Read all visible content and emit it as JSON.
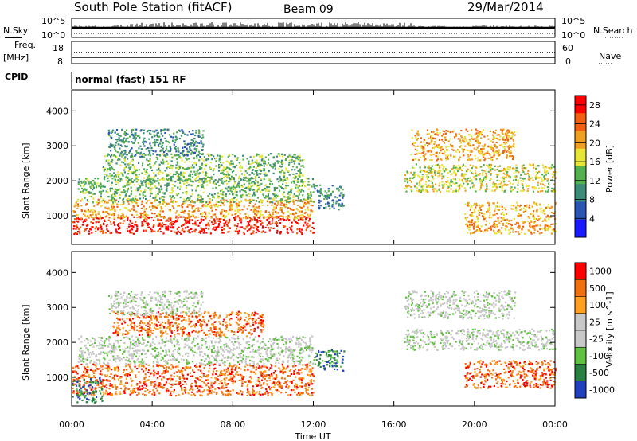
{
  "header": {
    "station": "South Pole Station (fitACF)",
    "beam": "Beam 09",
    "date": "29/Mar/2014"
  },
  "summary": {
    "nsky_label": "N.Sky",
    "nsearch_label": "N.Search",
    "nsky_ticks": [
      "10^5",
      "10^0"
    ],
    "nsearch_ticks": [
      "10^5",
      "10^0"
    ],
    "freq_label_line1": "Freq.",
    "freq_label_line2": "[MHz]",
    "freq_ticks": [
      "18",
      "8"
    ],
    "nave_label": "Nave",
    "nave_ticks": [
      "60",
      "0"
    ],
    "cpid_label": "CPID",
    "cpid_value": "normal (fast) 151 RF"
  },
  "chart_data": [
    {
      "type": "heatmap",
      "name": "power",
      "ylabel": "Slant Range [km]",
      "x_ticks": [
        "00:00",
        "04:00",
        "08:00",
        "12:00",
        "16:00",
        "20:00",
        "00:00"
      ],
      "x_range_hours": [
        0,
        24
      ],
      "y_ticks": [
        1000,
        2000,
        3000,
        4000
      ],
      "ylim": [
        180,
        4600
      ],
      "colorbar": {
        "label": "Power [dB]",
        "ticks": [
          4,
          8,
          12,
          16,
          20,
          24,
          28
        ],
        "range": [
          0,
          30
        ],
        "colors": [
          "#1a1aff",
          "#2a55b0",
          "#3c8c78",
          "#55b050",
          "#e6e639",
          "#f0a020",
          "#f06010",
          "#ff0000"
        ]
      },
      "regions": [
        {
          "t": [
            0.0,
            12.0
          ],
          "r": [
            500,
            1000
          ],
          "level": 7
        },
        {
          "t": [
            0.0,
            12.0
          ],
          "r": [
            950,
            1500
          ],
          "level": 5
        },
        {
          "t": [
            0.3,
            12.0
          ],
          "r": [
            1400,
            2100
          ],
          "level": 3
        },
        {
          "t": [
            1.5,
            11.5
          ],
          "r": [
            2000,
            2800
          ],
          "level": 3
        },
        {
          "t": [
            1.8,
            6.5
          ],
          "r": [
            2700,
            3500
          ],
          "level": 2
        },
        {
          "t": [
            12.0,
            13.5
          ],
          "r": [
            1200,
            1900
          ],
          "level": 2
        },
        {
          "t": [
            16.8,
            22.0
          ],
          "r": [
            2600,
            3500
          ],
          "level": 5
        },
        {
          "t": [
            16.5,
            24.0
          ],
          "r": [
            1700,
            2500
          ],
          "level": 4
        },
        {
          "t": [
            19.5,
            24.0
          ],
          "r": [
            500,
            1400
          ],
          "level": 5
        }
      ]
    },
    {
      "type": "heatmap",
      "name": "velocity",
      "ylabel": "Slant Range [km]",
      "xlabel": "Time UT",
      "x_ticks": [
        "00:00",
        "04:00",
        "08:00",
        "12:00",
        "16:00",
        "20:00",
        "00:00"
      ],
      "x_range_hours": [
        0,
        24
      ],
      "y_ticks": [
        1000,
        2000,
        3000,
        4000
      ],
      "ylim": [
        180,
        4600
      ],
      "colorbar": {
        "label": "Velocity [m s^-1]",
        "ticks": [
          1000,
          500,
          100,
          25,
          -25,
          -100,
          -500,
          -1000
        ],
        "colors": [
          "#2040c0",
          "#2a8040",
          "#60c040",
          "#c8c8c8",
          "#c8c8c8",
          "#ffa020",
          "#f07010",
          "#ff0000"
        ]
      },
      "regions": [
        {
          "t": [
            0.0,
            12.0
          ],
          "r": [
            500,
            1400
          ],
          "level": 6
        },
        {
          "t": [
            0.0,
            1.5
          ],
          "r": [
            300,
            1000
          ],
          "level": 1
        },
        {
          "t": [
            0.3,
            12.0
          ],
          "r": [
            1400,
            2200
          ],
          "level": 3
        },
        {
          "t": [
            2.0,
            9.5
          ],
          "r": [
            2200,
            2900
          ],
          "level": 6
        },
        {
          "t": [
            1.8,
            6.5
          ],
          "r": [
            2800,
            3500
          ],
          "level": 3
        },
        {
          "t": [
            12.0,
            13.5
          ],
          "r": [
            1200,
            1800
          ],
          "level": 1
        },
        {
          "t": [
            16.5,
            22.0
          ],
          "r": [
            2700,
            3500
          ],
          "level": 3
        },
        {
          "t": [
            16.5,
            24.0
          ],
          "r": [
            1800,
            2400
          ],
          "level": 3
        },
        {
          "t": [
            19.5,
            24.0
          ],
          "r": [
            700,
            1500
          ],
          "level": 6
        }
      ]
    }
  ]
}
